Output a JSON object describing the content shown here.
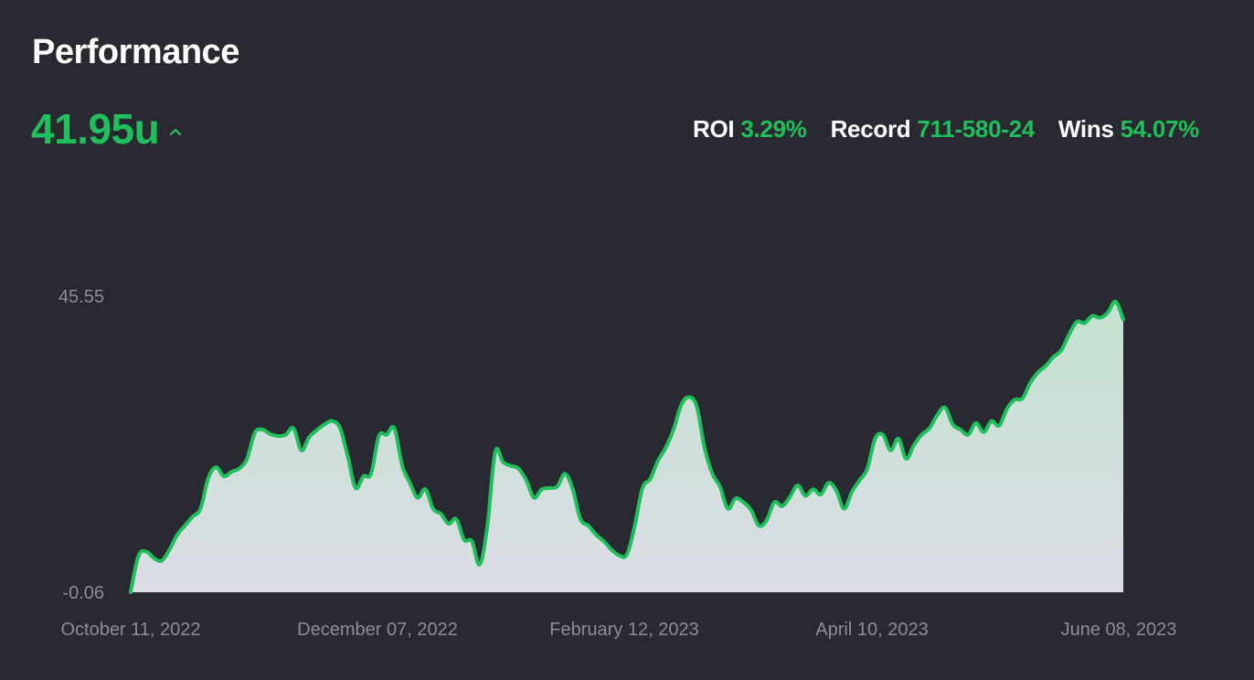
{
  "header": {
    "title": "Performance",
    "total": "41.95u"
  },
  "stats": [
    {
      "label": "ROI",
      "value": "3.29%"
    },
    {
      "label": "Record",
      "value": "711-580-24"
    },
    {
      "label": "Wins",
      "value": "54.07%"
    }
  ],
  "icons": {
    "trend": "chevron-up-icon"
  },
  "colors": {
    "background": "#292a31",
    "accent": "#1fbf5c",
    "line": "#1fbf5c",
    "fill_top": "#c3e2cf",
    "fill_bottom": "#dcdde6",
    "axis_text": "#8d8e94"
  },
  "chart_data": {
    "type": "area",
    "title": "",
    "xlabel": "",
    "ylabel": "",
    "x_ticks": [
      "October 11, 2022",
      "December 07, 2022",
      "February 12, 2023",
      "April 10, 2023",
      "June 08, 2023"
    ],
    "y_ticks": [
      "45.55",
      "-0.06"
    ],
    "ylim": [
      -0.06,
      45.55
    ],
    "xlim": [
      "2022-10-11",
      "2023-06-08"
    ],
    "grid": false,
    "legend": "none",
    "series": [
      {
        "values": [
          [
            0,
            -0.06
          ],
          [
            2,
            5.5
          ],
          [
            4,
            6.2
          ],
          [
            6,
            5.2
          ],
          [
            8,
            4.8
          ],
          [
            10,
            6.5
          ],
          [
            12,
            8.8
          ],
          [
            14,
            10.2
          ],
          [
            16,
            11.6
          ],
          [
            18,
            12.8
          ],
          [
            20,
            17.5
          ],
          [
            22,
            19.2
          ],
          [
            24,
            17.8
          ],
          [
            26,
            18.5
          ],
          [
            28,
            19.0
          ],
          [
            30,
            20.5
          ],
          [
            32,
            24.5
          ],
          [
            34,
            25.0
          ],
          [
            36,
            24.3
          ],
          [
            38,
            24.0
          ],
          [
            40,
            24.2
          ],
          [
            42,
            25.2
          ],
          [
            44,
            21.8
          ],
          [
            46,
            23.8
          ],
          [
            48,
            24.9
          ],
          [
            50,
            25.8
          ],
          [
            52,
            26.3
          ],
          [
            54,
            25.2
          ],
          [
            56,
            20.8
          ],
          [
            58,
            16.0
          ],
          [
            60,
            17.8
          ],
          [
            62,
            18.2
          ],
          [
            64,
            24.0
          ],
          [
            66,
            24.2
          ],
          [
            68,
            25.2
          ],
          [
            70,
            19.5
          ],
          [
            72,
            16.8
          ],
          [
            74,
            14.5
          ],
          [
            76,
            15.8
          ],
          [
            78,
            12.8
          ],
          [
            80,
            12.0
          ],
          [
            82,
            10.5
          ],
          [
            84,
            11.2
          ],
          [
            86,
            8.0
          ],
          [
            88,
            7.8
          ],
          [
            90,
            4.2
          ],
          [
            92,
            10.2
          ],
          [
            94,
            21.5
          ],
          [
            96,
            20.0
          ],
          [
            98,
            19.4
          ],
          [
            100,
            19.0
          ],
          [
            102,
            17.2
          ],
          [
            104,
            14.5
          ],
          [
            106,
            15.8
          ],
          [
            108,
            16.0
          ],
          [
            110,
            16.2
          ],
          [
            112,
            18.2
          ],
          [
            114,
            15.8
          ],
          [
            116,
            11.2
          ],
          [
            118,
            10.2
          ],
          [
            120,
            8.8
          ],
          [
            122,
            7.8
          ],
          [
            124,
            6.5
          ],
          [
            126,
            5.6
          ],
          [
            128,
            5.8
          ],
          [
            130,
            10.2
          ],
          [
            132,
            16.0
          ],
          [
            134,
            17.4
          ],
          [
            136,
            20.2
          ],
          [
            138,
            22.2
          ],
          [
            140,
            25.0
          ],
          [
            142,
            28.8
          ],
          [
            144,
            30.0
          ],
          [
            146,
            28.5
          ],
          [
            148,
            22.2
          ],
          [
            150,
            18.2
          ],
          [
            152,
            16.2
          ],
          [
            154,
            12.8
          ],
          [
            156,
            14.4
          ],
          [
            158,
            13.8
          ],
          [
            160,
            12.6
          ],
          [
            162,
            10.2
          ],
          [
            164,
            11.0
          ],
          [
            166,
            13.8
          ],
          [
            168,
            13.2
          ],
          [
            170,
            14.6
          ],
          [
            172,
            16.4
          ],
          [
            174,
            14.8
          ],
          [
            176,
            15.8
          ],
          [
            178,
            15.0
          ],
          [
            180,
            16.8
          ],
          [
            182,
            15.6
          ],
          [
            184,
            12.8
          ],
          [
            186,
            15.4
          ],
          [
            188,
            17.2
          ],
          [
            190,
            19.0
          ],
          [
            192,
            23.6
          ],
          [
            194,
            24.2
          ],
          [
            196,
            21.8
          ],
          [
            198,
            23.6
          ],
          [
            200,
            20.5
          ],
          [
            202,
            22.6
          ],
          [
            204,
            24.2
          ],
          [
            206,
            25.2
          ],
          [
            208,
            27.2
          ],
          [
            210,
            28.4
          ],
          [
            212,
            25.8
          ],
          [
            214,
            25.0
          ],
          [
            216,
            24.2
          ],
          [
            218,
            26.0
          ],
          [
            220,
            24.6
          ],
          [
            222,
            26.3
          ],
          [
            224,
            25.6
          ],
          [
            226,
            28.2
          ],
          [
            228,
            29.6
          ],
          [
            230,
            29.8
          ],
          [
            232,
            32.2
          ],
          [
            234,
            33.8
          ],
          [
            236,
            34.8
          ],
          [
            238,
            36.2
          ],
          [
            240,
            37.2
          ],
          [
            242,
            39.6
          ],
          [
            244,
            41.6
          ],
          [
            246,
            41.4
          ],
          [
            248,
            42.5
          ],
          [
            250,
            42.2
          ],
          [
            252,
            43.0
          ],
          [
            254,
            44.7
          ],
          [
            256,
            41.95
          ]
        ]
      }
    ]
  }
}
